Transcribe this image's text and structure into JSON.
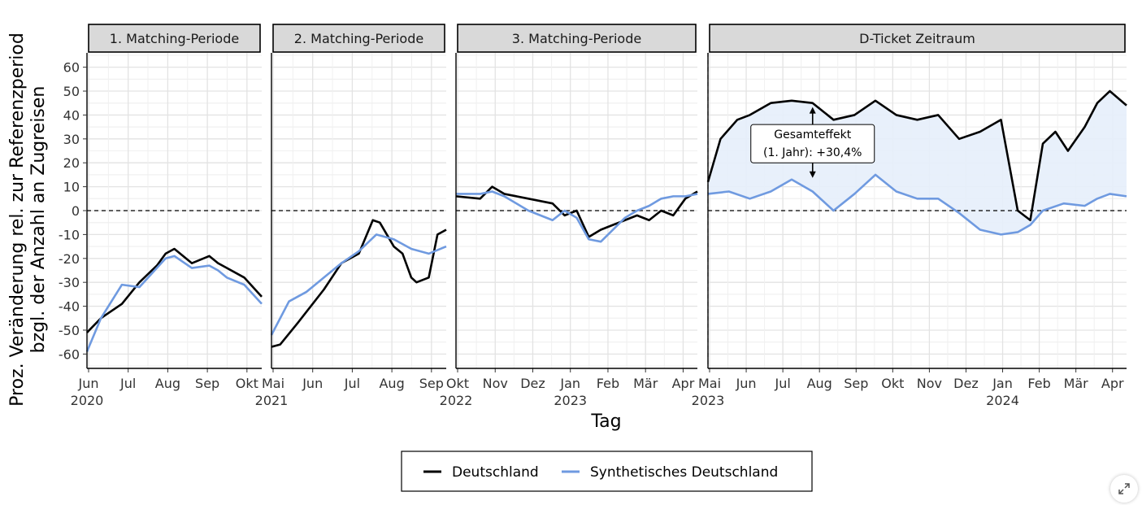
{
  "chart_data": {
    "type": "line",
    "xlabel": "Tag",
    "ylabel_line1": "Proz.  Veränderung rel. zur Referenzperiod",
    "ylabel_line2": "bzgl. der Anzahl an Zugreisen",
    "ylim": [
      -66,
      66
    ],
    "yticks": [
      -60,
      -50,
      -40,
      -30,
      -20,
      -10,
      0,
      10,
      20,
      30,
      40,
      50,
      60
    ],
    "hline": 0,
    "legend": {
      "position": "bottom",
      "items": [
        "Deutschland",
        "Synthetisches Deutschland"
      ]
    },
    "colors": {
      "Deutschland": "#000000",
      "Synthetisches Deutschland": "#6f9ae0",
      "fill": "#e6eefb"
    },
    "panels": [
      {
        "name": "1. Matching-Periode",
        "xticks": [
          "Jun",
          "Jul",
          "Aug",
          "Sep",
          "Okt"
        ],
        "year_labels": [
          "2020"
        ],
        "series": [
          {
            "name": "Deutschland",
            "x": [
              0,
              0.08,
              0.2,
              0.3,
              0.4,
              0.45,
              0.5,
              0.6,
              0.7,
              0.75,
              0.8,
              0.9,
              1
            ],
            "y": [
              -51,
              -45,
              -39,
              -30,
              -23,
              -18,
              -16,
              -22,
              -19,
              -22,
              -24,
              -28,
              -36
            ]
          },
          {
            "name": "Synthetisches Deutschland",
            "x": [
              0,
              0.08,
              0.2,
              0.3,
              0.4,
              0.45,
              0.5,
              0.6,
              0.7,
              0.75,
              0.8,
              0.9,
              1
            ],
            "y": [
              -59,
              -45,
              -31,
              -32,
              -24,
              -20,
              -19,
              -24,
              -23,
              -25,
              -28,
              -31,
              -39
            ]
          }
        ]
      },
      {
        "name": "2. Matching-Periode",
        "xticks": [
          "Mai",
          "Jun",
          "Jul",
          "Aug",
          "Sep"
        ],
        "year_labels": [
          "2021"
        ],
        "series": [
          {
            "name": "Deutschland",
            "x": [
              0,
              0.05,
              0.15,
              0.3,
              0.4,
              0.5,
              0.58,
              0.62,
              0.7,
              0.75,
              0.8,
              0.83,
              0.9,
              0.95,
              1
            ],
            "y": [
              -57,
              -56,
              -47,
              -33,
              -22,
              -18,
              -4,
              -5,
              -15,
              -18,
              -28,
              -30,
              -28,
              -10,
              -8
            ]
          },
          {
            "name": "Synthetisches Deutschland",
            "x": [
              0,
              0.1,
              0.2,
              0.3,
              0.4,
              0.5,
              0.6,
              0.7,
              0.8,
              0.9,
              1
            ],
            "y": [
              -52,
              -38,
              -34,
              -28,
              -22,
              -17,
              -10,
              -12,
              -16,
              -18,
              -15
            ]
          }
        ]
      },
      {
        "name": "3. Matching-Periode",
        "xticks": [
          "Okt",
          "Nov",
          "Dez",
          "Jan",
          "Feb",
          "Mär",
          "Apr"
        ],
        "year_labels": [
          "2022",
          "2023"
        ],
        "series": [
          {
            "name": "Deutschland",
            "x": [
              0,
              0.1,
              0.15,
              0.2,
              0.3,
              0.4,
              0.45,
              0.5,
              0.55,
              0.6,
              0.65,
              0.7,
              0.75,
              0.8,
              0.85,
              0.9,
              0.95,
              1
            ],
            "y": [
              6,
              5,
              10,
              7,
              5,
              3,
              -2,
              0,
              -11,
              -8,
              -6,
              -4,
              -2,
              -4,
              0,
              -2,
              5,
              8
            ]
          },
          {
            "name": "Synthetisches Deutschland",
            "x": [
              0,
              0.1,
              0.15,
              0.2,
              0.3,
              0.4,
              0.45,
              0.5,
              0.55,
              0.6,
              0.65,
              0.7,
              0.75,
              0.8,
              0.85,
              0.9,
              0.95,
              1
            ],
            "y": [
              7,
              7,
              8,
              6,
              0,
              -4,
              0,
              -3,
              -12,
              -13,
              -8,
              -3,
              0,
              2,
              5,
              6,
              6,
              7
            ]
          }
        ]
      },
      {
        "name": "D-Ticket Zeitraum",
        "xticks": [
          "Mai",
          "Jun",
          "Jul",
          "Aug",
          "Sep",
          "Okt",
          "Nov",
          "Dez",
          "Jan",
          "Feb",
          "Mär",
          "Apr"
        ],
        "year_labels": [
          "2023",
          "2024"
        ],
        "annotation": "Gesamteffekt\n(1. Jahr): +30,4%",
        "series": [
          {
            "name": "Deutschland",
            "x": [
              0,
              0.03,
              0.07,
              0.1,
              0.15,
              0.2,
              0.25,
              0.3,
              0.35,
              0.4,
              0.45,
              0.5,
              0.55,
              0.6,
              0.65,
              0.7,
              0.74,
              0.77,
              0.8,
              0.83,
              0.86,
              0.9,
              0.93,
              0.96,
              1
            ],
            "y": [
              12,
              30,
              38,
              40,
              45,
              46,
              45,
              38,
              40,
              46,
              40,
              38,
              40,
              30,
              33,
              38,
              0,
              -4,
              28,
              33,
              25,
              35,
              45,
              50,
              44
            ]
          },
          {
            "name": "Synthetisches Deutschland",
            "x": [
              0,
              0.05,
              0.1,
              0.15,
              0.2,
              0.25,
              0.3,
              0.35,
              0.4,
              0.45,
              0.5,
              0.55,
              0.6,
              0.65,
              0.7,
              0.74,
              0.77,
              0.8,
              0.85,
              0.9,
              0.93,
              0.96,
              1
            ],
            "y": [
              7,
              8,
              5,
              8,
              13,
              8,
              0,
              7,
              15,
              8,
              5,
              5,
              -1,
              -8,
              -10,
              -9,
              -6,
              0,
              3,
              2,
              5,
              7,
              6
            ]
          }
        ]
      }
    ]
  }
}
